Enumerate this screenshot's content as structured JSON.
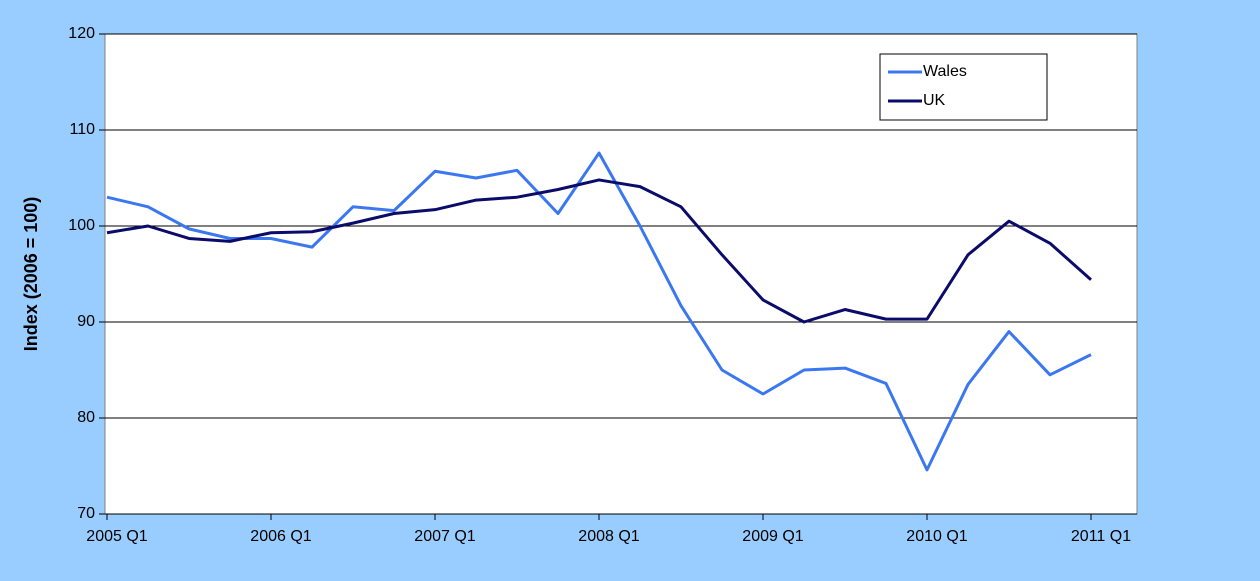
{
  "chart_data": {
    "type": "line",
    "y_label": "Index (2006 = 100)",
    "categories": [
      "2005 Q1",
      null,
      null,
      null,
      "2006 Q1",
      null,
      null,
      null,
      "2007 Q1",
      null,
      null,
      null,
      "2008 Q1",
      null,
      null,
      null,
      "2009 Q1",
      null,
      null,
      null,
      "2010 Q1",
      null,
      null,
      null,
      "2011 Q1"
    ],
    "series": [
      {
        "name": "Wales",
        "color": "#3b78f0",
        "values": [
          103,
          102,
          99.7,
          98.7,
          98.7,
          97.8,
          102,
          101.6,
          105.7,
          105,
          105.8,
          101.3,
          107.6,
          100,
          91.7,
          85,
          82.5,
          85,
          85.2,
          83.6,
          74.6,
          83.5,
          89,
          84.5,
          86.6
        ]
      },
      {
        "name": "UK",
        "color": "#0b0b6b",
        "values": [
          99.3,
          100,
          98.7,
          98.4,
          99.3,
          99.4,
          100.3,
          101.3,
          101.7,
          102.7,
          103,
          103.8,
          104.8,
          104.1,
          102,
          97,
          92.3,
          90,
          91.3,
          90.3,
          90.3,
          97,
          100.5,
          98.2,
          94.4
        ]
      }
    ],
    "ylim": [
      70,
      120
    ],
    "yticks": [
      70,
      80,
      90,
      100,
      110,
      120
    ],
    "grid": true,
    "legend": "upper right"
  }
}
